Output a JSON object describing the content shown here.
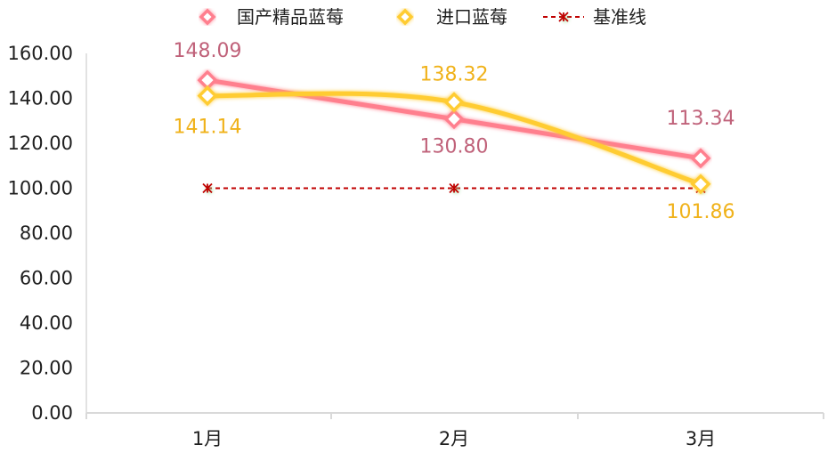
{
  "chart_data": {
    "type": "line",
    "categories": [
      "1月",
      "2月",
      "3月"
    ],
    "series": [
      {
        "name": "国产精品蓝莓",
        "values": [
          148.09,
          130.8,
          113.34
        ],
        "labels": [
          "148.09",
          "130.80",
          "113.34"
        ],
        "color": "#ff7f8e",
        "label_color": "#c0627a",
        "marker": "diamond",
        "style": "solid"
      },
      {
        "name": "进口蓝莓",
        "values": [
          141.14,
          138.32,
          101.86
        ],
        "labels": [
          "141.14",
          "138.32",
          "101.86"
        ],
        "color": "#ffcc33",
        "label_color": "#f0b21a",
        "marker": "diamond",
        "style": "smooth"
      },
      {
        "name": "基准线",
        "values": [
          100,
          100,
          100
        ],
        "color": "#c00000",
        "marker": "asterisk",
        "style": "dashed"
      }
    ],
    "y_ticks": [
      "0.00",
      "20.00",
      "40.00",
      "60.00",
      "80.00",
      "100.00",
      "120.00",
      "140.00",
      "160.00"
    ],
    "ylim": [
      0,
      160
    ],
    "y_step": 20,
    "grid": false,
    "legend_position": "top"
  }
}
